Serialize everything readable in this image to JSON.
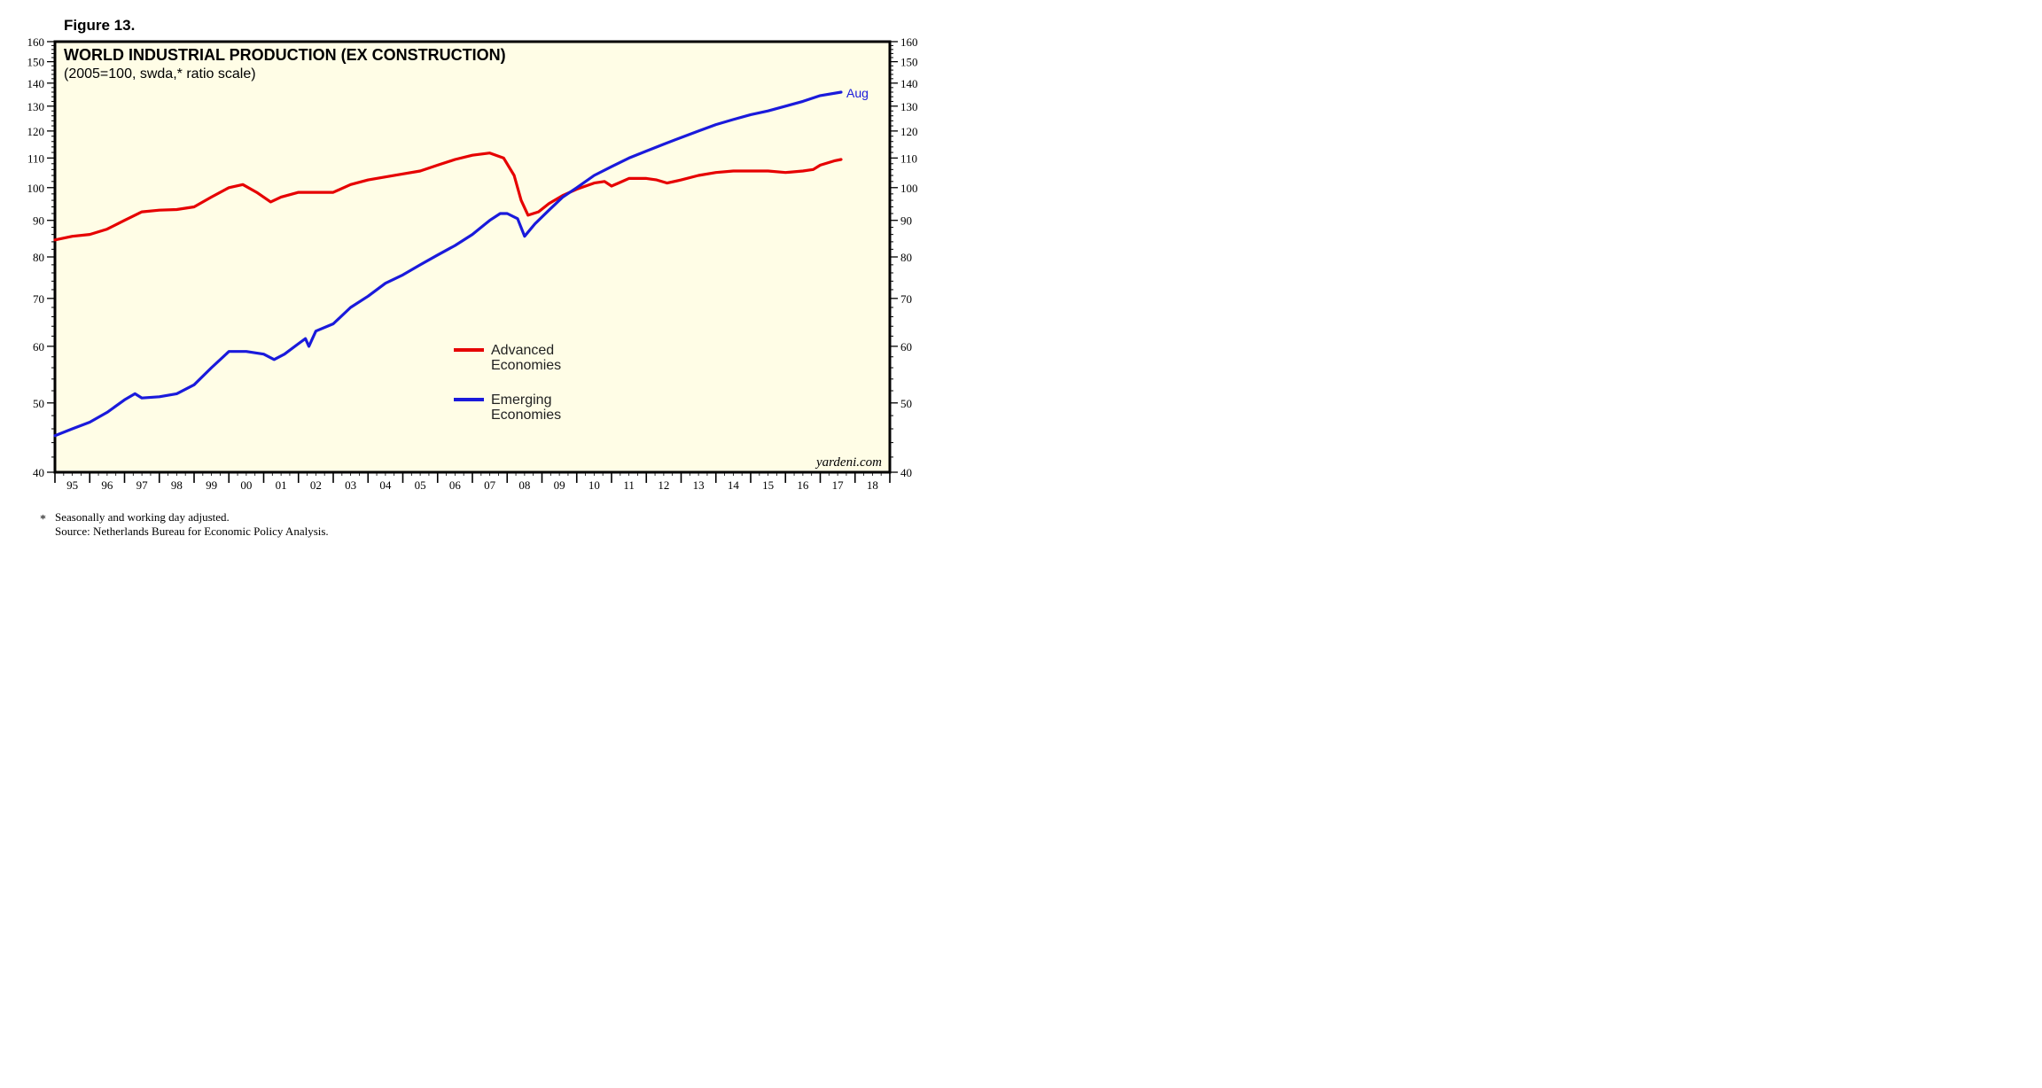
{
  "figure_label": "Figure 13.",
  "chart_data": {
    "type": "line",
    "title": "WORLD INDUSTRIAL PRODUCTION (EX CONSTRUCTION)",
    "subtitle": "(2005=100, swda,* ratio scale)",
    "y_scale": "log",
    "ylim": [
      40,
      160
    ],
    "y_ticks": [
      40,
      50,
      60,
      70,
      80,
      90,
      100,
      110,
      120,
      130,
      140,
      150,
      160
    ],
    "xlim": [
      1995.0,
      2019.0
    ],
    "x_tick_labels": [
      "95",
      "96",
      "97",
      "98",
      "99",
      "00",
      "01",
      "02",
      "03",
      "04",
      "05",
      "06",
      "07",
      "08",
      "09",
      "10",
      "11",
      "12",
      "13",
      "14",
      "15",
      "16",
      "17",
      "18"
    ],
    "grid": false,
    "background_color": "#fffde6",
    "end_label": "Aug",
    "end_label_color": "#1a1adb",
    "watermark": "yardeni.com",
    "legend_placement": "center",
    "series": [
      {
        "name": "Advanced Economies",
        "color": "#e60000",
        "points": [
          [
            1995.0,
            84.5
          ],
          [
            1995.5,
            85.5
          ],
          [
            1996.0,
            86.0
          ],
          [
            1996.5,
            87.5
          ],
          [
            1997.0,
            90.0
          ],
          [
            1997.5,
            92.5
          ],
          [
            1998.0,
            93.0
          ],
          [
            1998.5,
            93.2
          ],
          [
            1999.0,
            94.0
          ],
          [
            1999.5,
            97.0
          ],
          [
            2000.0,
            100.0
          ],
          [
            2000.4,
            101.0
          ],
          [
            2000.8,
            98.5
          ],
          [
            2001.2,
            95.5
          ],
          [
            2001.5,
            97.0
          ],
          [
            2002.0,
            98.5
          ],
          [
            2002.5,
            98.5
          ],
          [
            2003.0,
            98.5
          ],
          [
            2003.5,
            101.0
          ],
          [
            2004.0,
            102.5
          ],
          [
            2004.5,
            103.5
          ],
          [
            2005.0,
            104.5
          ],
          [
            2005.5,
            105.5
          ],
          [
            2006.0,
            107.5
          ],
          [
            2006.5,
            109.5
          ],
          [
            2007.0,
            111.0
          ],
          [
            2007.5,
            111.8
          ],
          [
            2007.9,
            110.0
          ],
          [
            2008.2,
            104.0
          ],
          [
            2008.4,
            96.0
          ],
          [
            2008.6,
            91.5
          ],
          [
            2008.9,
            92.5
          ],
          [
            2009.2,
            95.0
          ],
          [
            2009.6,
            97.5
          ],
          [
            2010.0,
            99.5
          ],
          [
            2010.5,
            101.5
          ],
          [
            2010.8,
            102.0
          ],
          [
            2011.0,
            100.5
          ],
          [
            2011.2,
            101.5
          ],
          [
            2011.5,
            103.0
          ],
          [
            2012.0,
            103.0
          ],
          [
            2012.3,
            102.5
          ],
          [
            2012.6,
            101.5
          ],
          [
            2013.0,
            102.5
          ],
          [
            2013.5,
            104.0
          ],
          [
            2014.0,
            105.0
          ],
          [
            2014.5,
            105.5
          ],
          [
            2015.0,
            105.5
          ],
          [
            2015.5,
            105.5
          ],
          [
            2016.0,
            105.0
          ],
          [
            2016.5,
            105.5
          ],
          [
            2016.8,
            106.0
          ],
          [
            2017.0,
            107.5
          ],
          [
            2017.4,
            109.0
          ],
          [
            2017.6,
            109.5
          ]
        ]
      },
      {
        "name": "Emerging Economies",
        "color": "#1a1adb",
        "points": [
          [
            1995.0,
            45.0
          ],
          [
            1995.5,
            46.0
          ],
          [
            1996.0,
            47.0
          ],
          [
            1996.5,
            48.5
          ],
          [
            1997.0,
            50.5
          ],
          [
            1997.3,
            51.5
          ],
          [
            1997.5,
            50.8
          ],
          [
            1998.0,
            51.0
          ],
          [
            1998.5,
            51.5
          ],
          [
            1999.0,
            53.0
          ],
          [
            1999.5,
            56.0
          ],
          [
            2000.0,
            59.0
          ],
          [
            2000.5,
            59.0
          ],
          [
            2001.0,
            58.5
          ],
          [
            2001.3,
            57.5
          ],
          [
            2001.6,
            58.5
          ],
          [
            2002.0,
            60.5
          ],
          [
            2002.2,
            61.5
          ],
          [
            2002.3,
            60.0
          ],
          [
            2002.5,
            63.0
          ],
          [
            2003.0,
            64.5
          ],
          [
            2003.5,
            68.0
          ],
          [
            2004.0,
            70.5
          ],
          [
            2004.5,
            73.5
          ],
          [
            2005.0,
            75.5
          ],
          [
            2005.5,
            78.0
          ],
          [
            2006.0,
            80.5
          ],
          [
            2006.5,
            83.0
          ],
          [
            2007.0,
            86.0
          ],
          [
            2007.5,
            90.0
          ],
          [
            2007.8,
            92.0
          ],
          [
            2008.0,
            92.0
          ],
          [
            2008.3,
            90.5
          ],
          [
            2008.5,
            85.5
          ],
          [
            2008.8,
            89.0
          ],
          [
            2009.2,
            93.0
          ],
          [
            2009.6,
            97.0
          ],
          [
            2010.0,
            100.0
          ],
          [
            2010.5,
            104.0
          ],
          [
            2011.0,
            107.0
          ],
          [
            2011.5,
            110.0
          ],
          [
            2012.0,
            112.5
          ],
          [
            2012.5,
            115.0
          ],
          [
            2013.0,
            117.5
          ],
          [
            2013.5,
            120.0
          ],
          [
            2014.0,
            122.5
          ],
          [
            2014.5,
            124.5
          ],
          [
            2015.0,
            126.5
          ],
          [
            2015.5,
            128.0
          ],
          [
            2016.0,
            130.0
          ],
          [
            2016.5,
            132.0
          ],
          [
            2017.0,
            134.5
          ],
          [
            2017.6,
            136.0
          ]
        ]
      }
    ],
    "footnote_marker": "*",
    "footnote": "Seasonally and working day adjusted.",
    "source": "Source: Netherlands Bureau for Economic Policy Analysis."
  }
}
